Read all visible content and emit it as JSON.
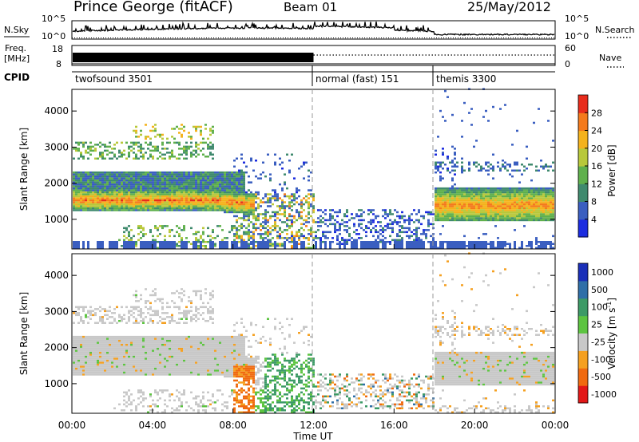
{
  "header": {
    "station": "Prince George (fitACF)",
    "beam": "Beam 01",
    "date": "25/May/2012"
  },
  "strip": {
    "nsky_label": "N.Sky",
    "nsearch_label": "N.Search",
    "freq_label_1": "Freq.",
    "freq_label_2": "[MHz]",
    "nave_label": "Nave",
    "cpid_label": "CPID",
    "nsky_ticks": [
      "10^5",
      "10^0"
    ],
    "nsearch_ticks": [
      "10^5",
      "10^0"
    ],
    "freq_ticks": [
      "18",
      "8"
    ],
    "nave_ticks": [
      "60",
      "0"
    ]
  },
  "modes": [
    {
      "label": "twofsound 3501",
      "start": 0,
      "end": 12
    },
    {
      "label": "normal (fast) 151",
      "start": 12,
      "end": 18
    },
    {
      "label": "themis 3300",
      "start": 18,
      "end": 24
    }
  ],
  "chart_data": [
    {
      "type": "heatmap",
      "title": "Power",
      "ylabel": "Slant Range [km]",
      "xlabel": "Time UT",
      "xlim": [
        0,
        24
      ],
      "ylim": [
        180,
        4600
      ],
      "yticks": [
        "1000",
        "2000",
        "3000",
        "4000"
      ],
      "colorbar": {
        "label": "Power [dB]",
        "ticks": [
          "4",
          "8",
          "12",
          "16",
          "20",
          "24",
          "28"
        ],
        "colors": [
          "#1c2ce0",
          "#3a5ec0",
          "#3f8a6e",
          "#5fb04c",
          "#b8c83a",
          "#f4b21c",
          "#f47a1c",
          "#e82c1c"
        ]
      }
    },
    {
      "type": "heatmap",
      "title": "Velocity",
      "ylabel": "Slant Range [km]",
      "xlabel": "Time UT",
      "xlim": [
        0,
        24
      ],
      "ylim": [
        180,
        4600
      ],
      "yticks": [
        "1000",
        "2000",
        "3000",
        "4000"
      ],
      "xticks": [
        "00:00",
        "04:00",
        "08:00",
        "12:00",
        "16:00",
        "20:00",
        "00:00"
      ],
      "colorbar": {
        "label": "Velocity [m s",
        "label_sup": "-1",
        "label_end": "]",
        "ticks": [
          "1000",
          "500",
          "100",
          "25",
          "-25",
          "-100",
          "-500",
          "-1000"
        ],
        "colors": [
          "#1a2fb8",
          "#2f6fa8",
          "#3c9a66",
          "#5cc440",
          "#c8c8c8",
          "#f5a020",
          "#f06a10",
          "#e21818"
        ]
      }
    }
  ]
}
